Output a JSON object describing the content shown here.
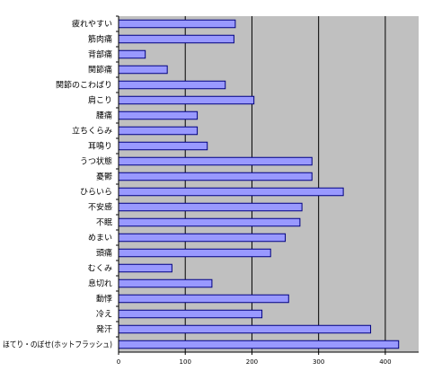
{
  "chart_data": {
    "type": "bar",
    "orientation": "horizontal",
    "categories": [
      "疲れやすい",
      "筋肉痛",
      "背部痛",
      "関節痛",
      "関節のこわばり",
      "肩こり",
      "腰痛",
      "立ちくらみ",
      "耳鳴り",
      "うつ状態",
      "憂鬱",
      "ひらいら",
      "不安感",
      "不眠",
      "めまい",
      "頭痛",
      "むくみ",
      "息切れ",
      "動悸",
      "冷え",
      "発汗",
      "ほてり・のぼせ(ホットフラッシュ)"
    ],
    "values": [
      175,
      173,
      40,
      73,
      160,
      203,
      118,
      118,
      133,
      290,
      290,
      337,
      275,
      272,
      250,
      228,
      80,
      140,
      255,
      215,
      378,
      420
    ],
    "xlim": [
      0,
      450
    ],
    "xticks": [
      "0",
      "100",
      "200",
      "300",
      "400"
    ],
    "grid": true,
    "colors": {
      "bar_fill": "#9999ff",
      "bar_stroke": "#000080",
      "plot_background": "#c0c0c0",
      "gridline": "#000000"
    }
  }
}
